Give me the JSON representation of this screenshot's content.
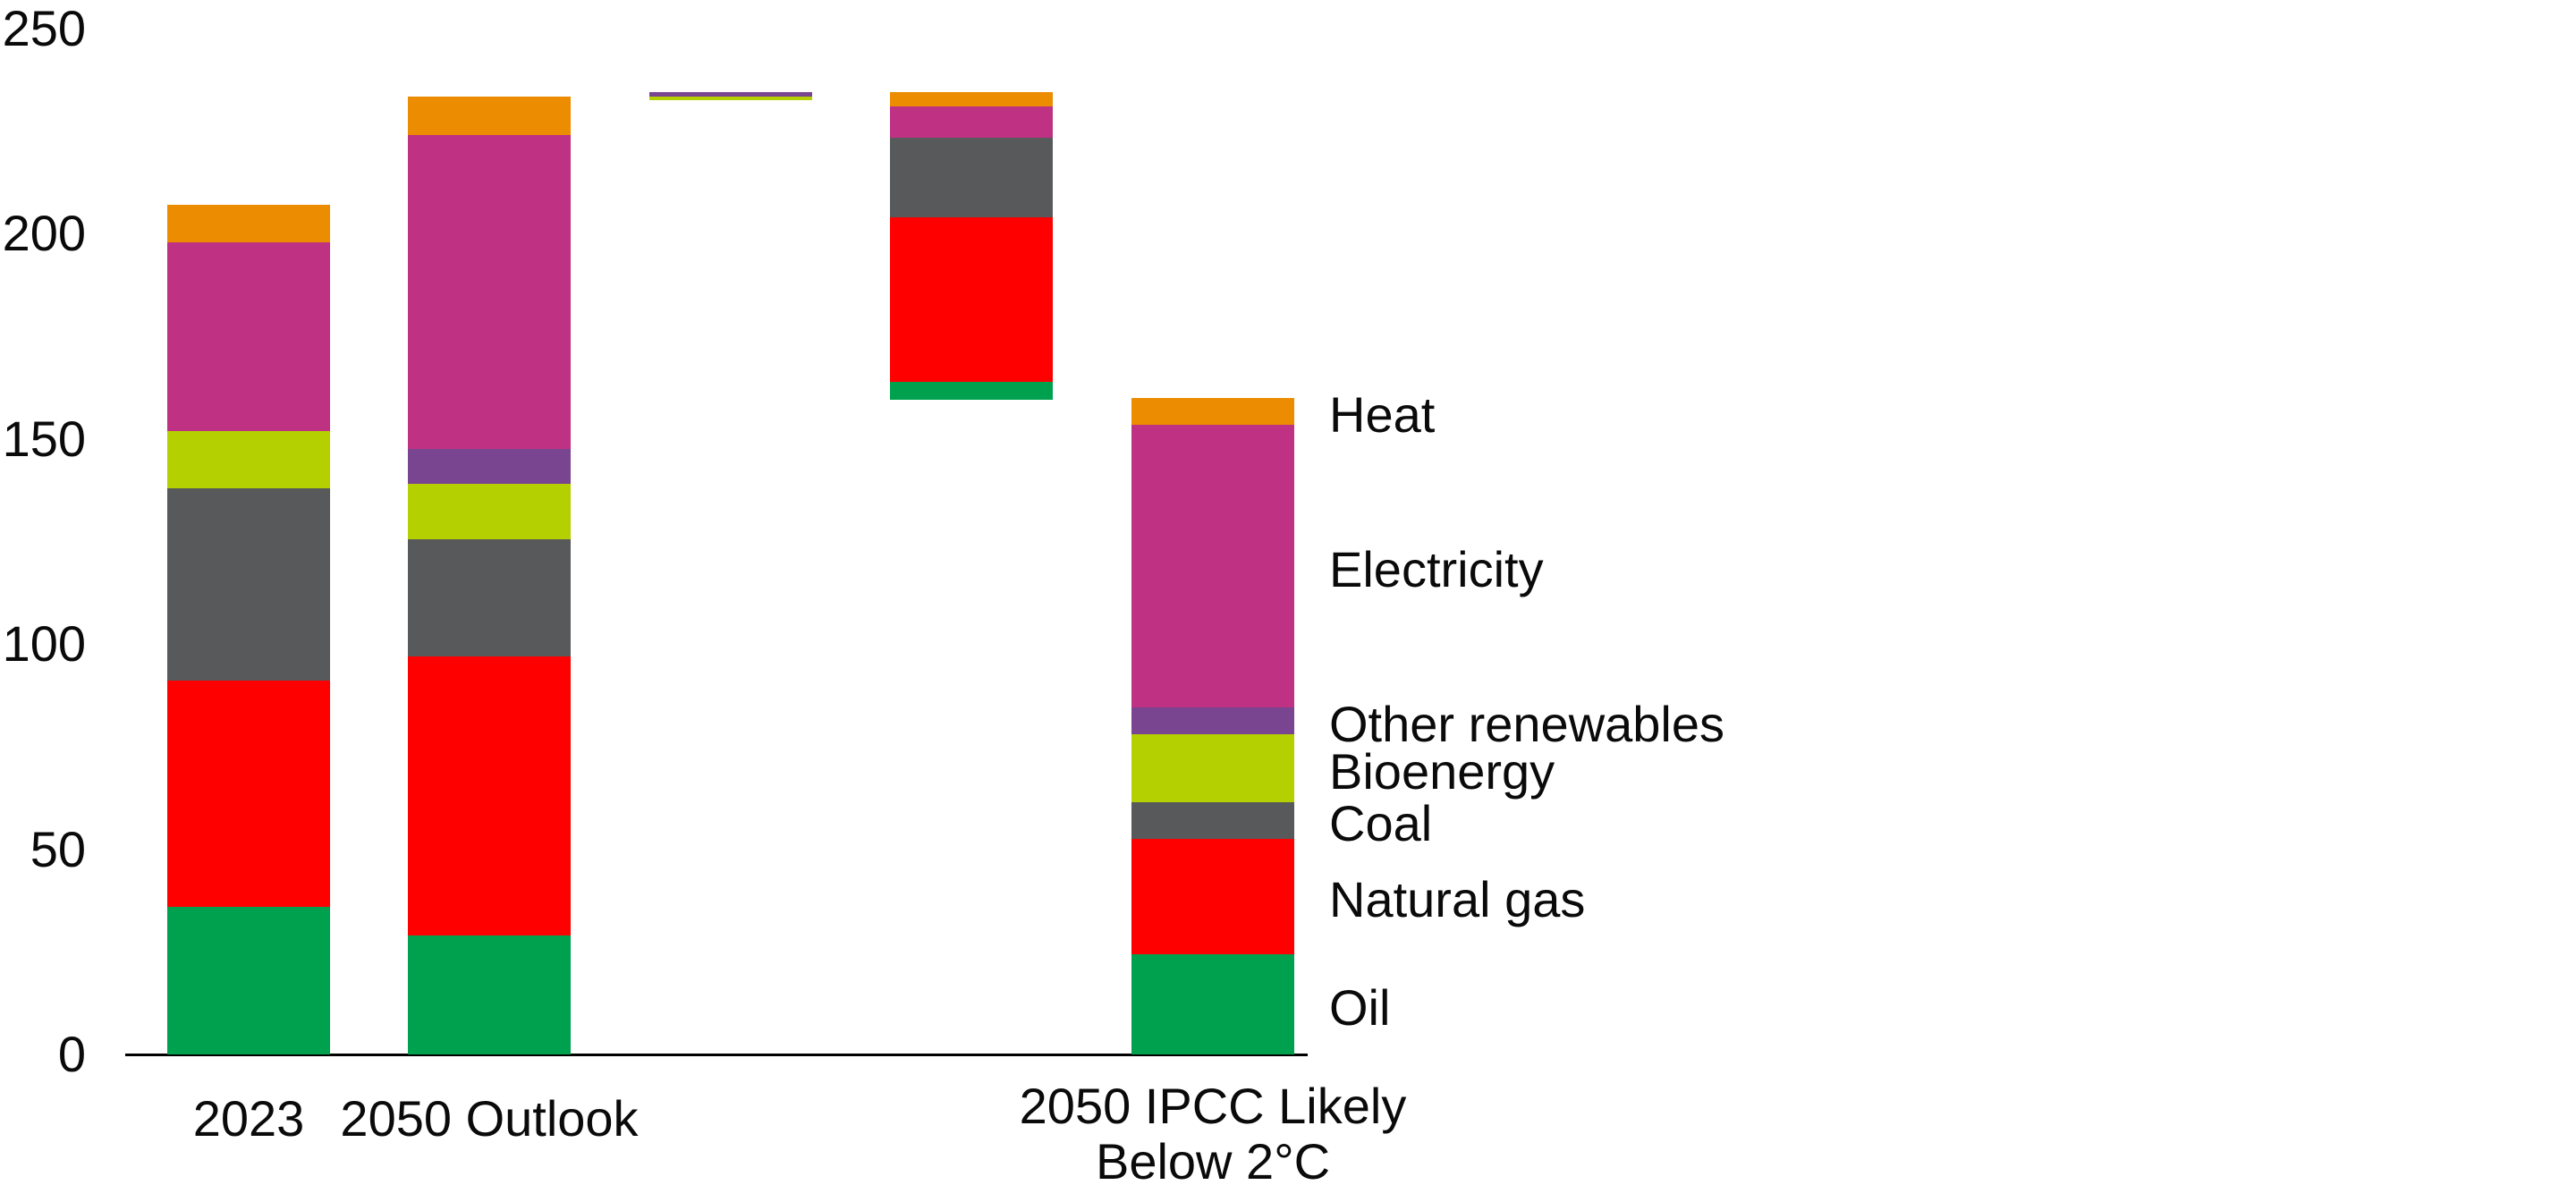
{
  "chart_data": {
    "type": "bar",
    "subtype": "stacked_waterfall",
    "title": "",
    "xlabel": "",
    "ylabel": "",
    "y_axis": {
      "min": 0,
      "max": 250,
      "tick_interval": 50,
      "ticks": [
        0,
        50,
        100,
        150,
        200,
        250
      ],
      "grid": false
    },
    "series_colors": {
      "Oil": "#00A14E",
      "Natural gas": "#FF0000",
      "Coal": "#58595B",
      "Bioenergy": "#B4D000",
      "Other renewables": "#7A4590",
      "Electricity": "#BE3183",
      "Heat": "#EC8C00"
    },
    "bars": [
      {
        "label": "2023",
        "total": 207,
        "segments": [
          {
            "series": "Oil",
            "from": 0,
            "to": 36
          },
          {
            "series": "Natural gas",
            "from": 36,
            "to": 91
          },
          {
            "series": "Coal",
            "from": 91,
            "to": 138
          },
          {
            "series": "Bioenergy",
            "from": 138,
            "to": 152
          },
          {
            "series": "Electricity",
            "from": 152,
            "to": 198
          },
          {
            "series": "Heat",
            "from": 198,
            "to": 207
          }
        ]
      },
      {
        "label": "2050 Outlook",
        "total": 233.5,
        "segments": [
          {
            "series": "Oil",
            "from": 0,
            "to": 29
          },
          {
            "series": "Natural gas",
            "from": 29,
            "to": 97
          },
          {
            "series": "Coal",
            "from": 97,
            "to": 125.5
          },
          {
            "series": "Bioenergy",
            "from": 125.5,
            "to": 139
          },
          {
            "series": "Other renewables",
            "from": 139,
            "to": 147.5
          },
          {
            "series": "Electricity",
            "from": 147.5,
            "to": 224
          },
          {
            "series": "Heat",
            "from": 224,
            "to": 233.5
          }
        ]
      },
      {
        "label": "",
        "note": "floating increase bar",
        "segments": [
          {
            "series": "Bioenergy",
            "from": 232.5,
            "to": 233.5
          },
          {
            "series": "Other renewables",
            "from": 233.5,
            "to": 234.5
          }
        ]
      },
      {
        "label": "",
        "note": "floating decrease bar",
        "segments": [
          {
            "series": "Oil",
            "from": 159.5,
            "to": 164
          },
          {
            "series": "Natural gas",
            "from": 164,
            "to": 204
          },
          {
            "series": "Coal",
            "from": 204,
            "to": 223.5
          },
          {
            "series": "Electricity",
            "from": 223.5,
            "to": 231
          },
          {
            "series": "Heat",
            "from": 231,
            "to": 234.5
          }
        ]
      },
      {
        "label": "2050 IPCC Likely\nBelow 2°C",
        "total": 160,
        "segments": [
          {
            "series": "Oil",
            "from": 0,
            "to": 24.5
          },
          {
            "series": "Natural gas",
            "from": 24.5,
            "to": 52.5
          },
          {
            "series": "Coal",
            "from": 52.5,
            "to": 61.5
          },
          {
            "series": "Bioenergy",
            "from": 61.5,
            "to": 78
          },
          {
            "series": "Other renewables",
            "from": 78,
            "to": 84.5
          },
          {
            "series": "Electricity",
            "from": 84.5,
            "to": 153.5
          },
          {
            "series": "Heat",
            "from": 153.5,
            "to": 160
          }
        ]
      }
    ],
    "legend": {
      "position": "right",
      "entries": [
        "Heat",
        "Electricity",
        "Other renewables",
        "Bioenergy",
        "Coal",
        "Natural gas",
        "Oil"
      ]
    }
  }
}
